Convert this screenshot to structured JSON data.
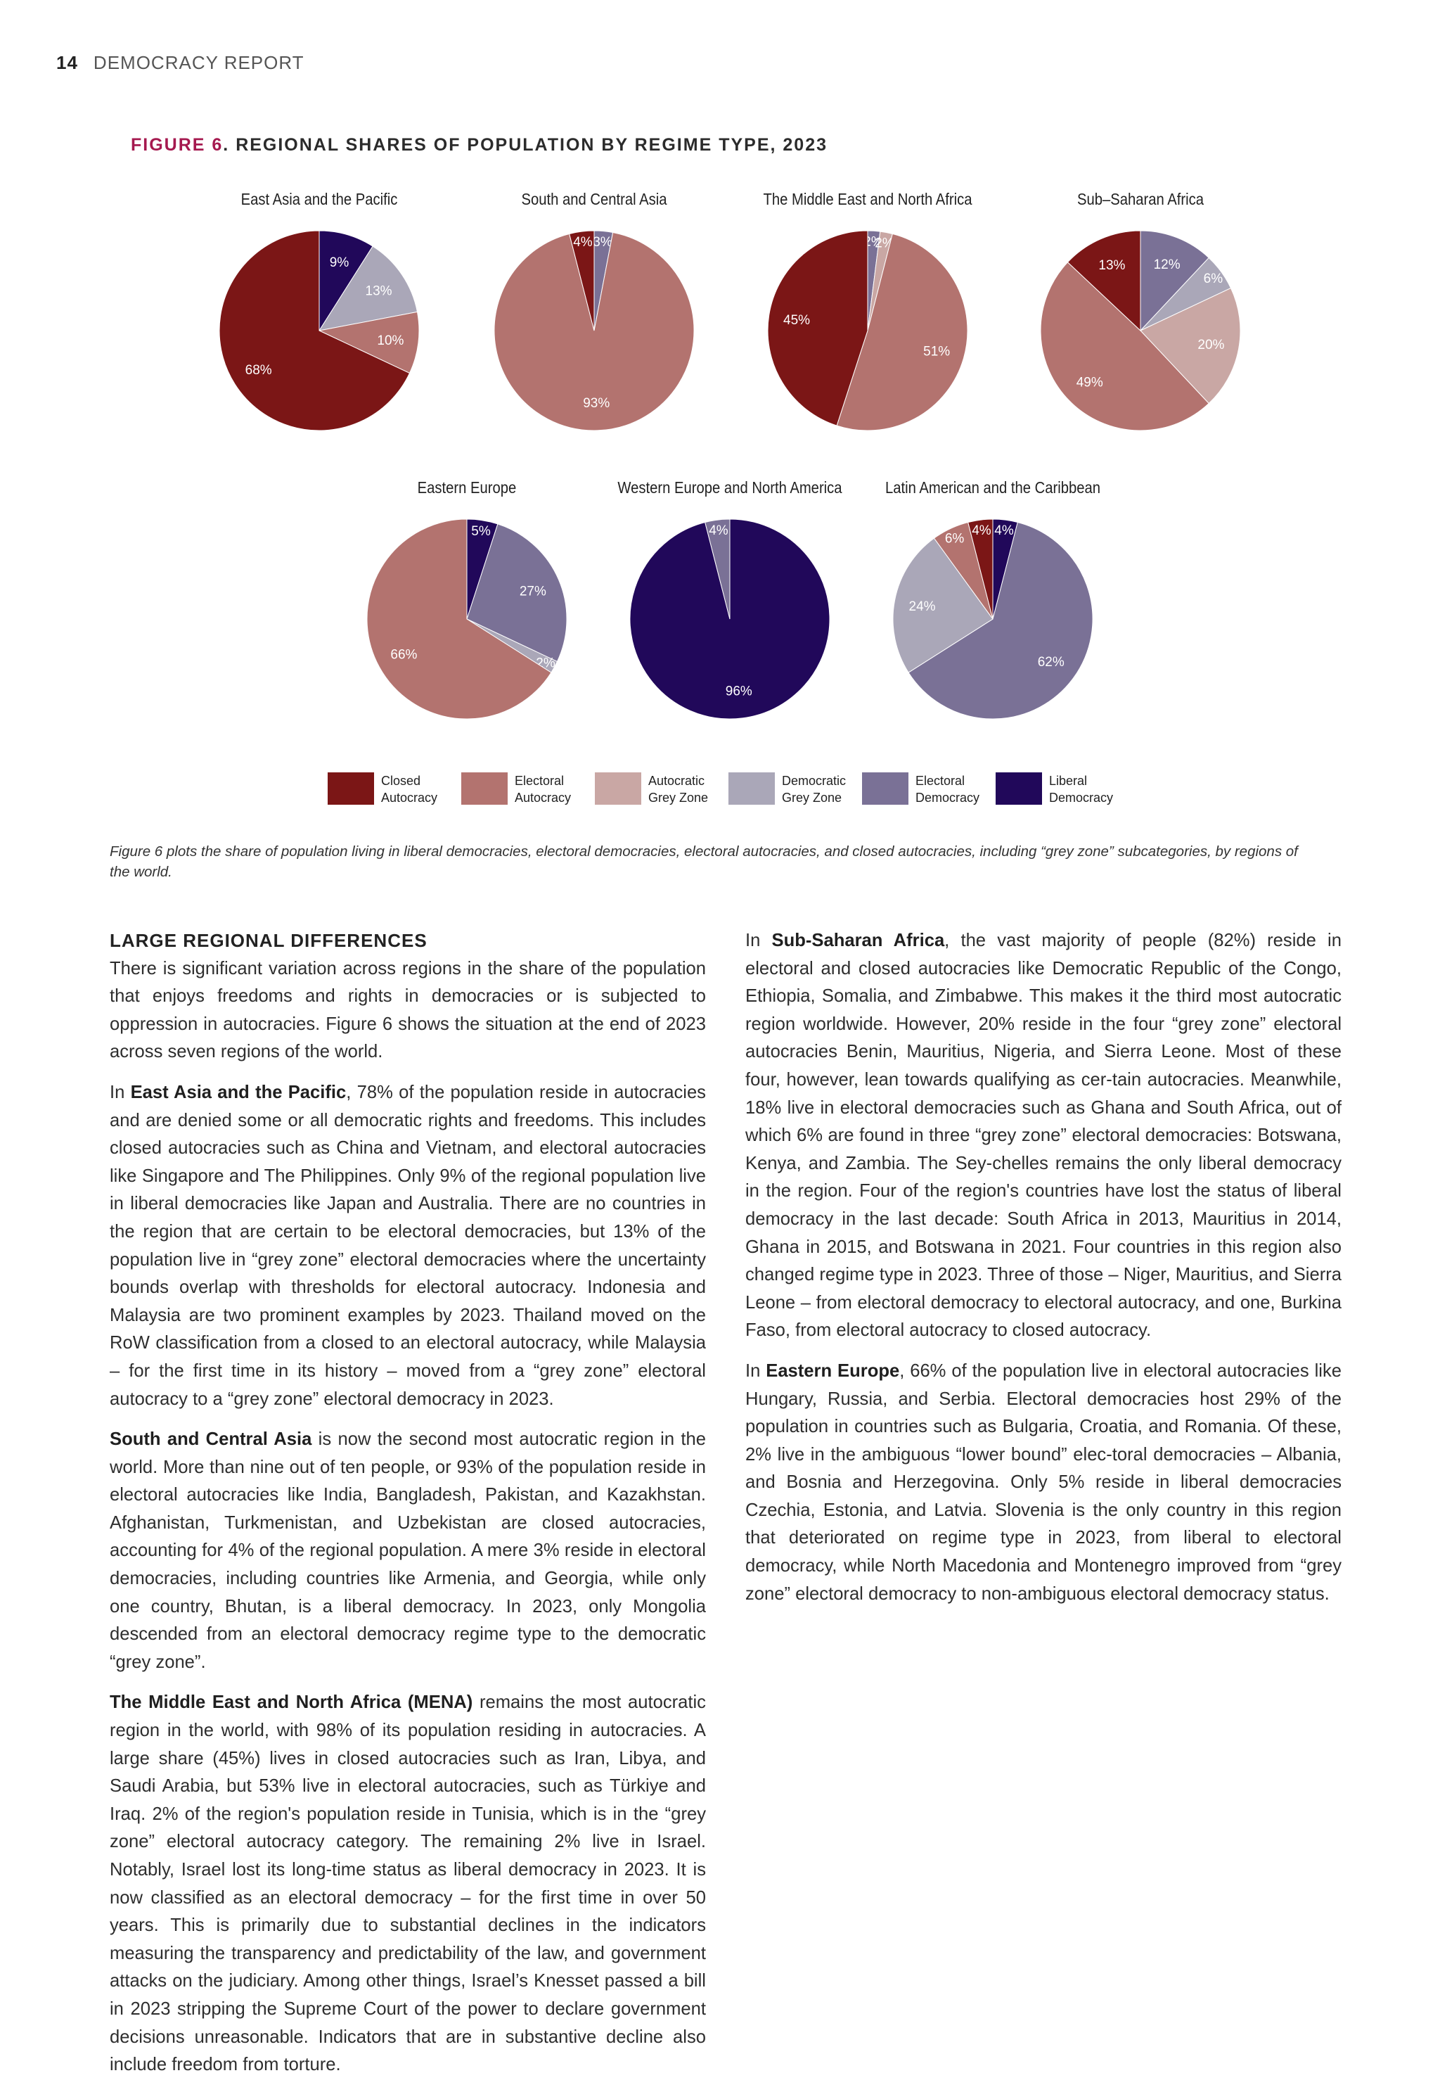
{
  "header": {
    "page_number": "14",
    "title": "DEMOCRACY REPORT"
  },
  "figure": {
    "number_label": "FIGURE 6",
    "title": ". REGIONAL SHARES OF POPULATION BY REGIME TYPE, 2023",
    "caption": "Figure 6 plots the share of population living in liberal democracies, electoral democracies, electoral autocracies, and closed autocracies, including “grey zone” subcategories, by regions of the world."
  },
  "colors": {
    "closed_autocracy": "#7b1616",
    "electoral_autocracy": "#b3736f",
    "autocratic_grey_zone": "#c9a7a4",
    "democratic_grey_zone": "#aaa7b8",
    "electoral_democracy": "#7a7196",
    "liberal_democracy": "#21085a"
  },
  "legend": [
    {
      "key": "closed_autocracy",
      "label": "Closed Autocracy"
    },
    {
      "key": "electoral_autocracy",
      "label": "Electoral Autocracy"
    },
    {
      "key": "autocratic_grey_zone",
      "label": "Autocratic Grey Zone"
    },
    {
      "key": "democratic_grey_zone",
      "label": "Democratic Grey Zone"
    },
    {
      "key": "electoral_democracy",
      "label": "Electoral Democracy"
    },
    {
      "key": "liberal_democracy",
      "label": "Liberal Democracy"
    }
  ],
  "chart_data": [
    {
      "type": "pie",
      "title": "East Asia and the Pacific",
      "slices": [
        {
          "category": "liberal_democracy",
          "value": 9,
          "label": "9%"
        },
        {
          "category": "democratic_grey_zone",
          "value": 13,
          "label": "13%"
        },
        {
          "category": "electoral_autocracy",
          "value": 10,
          "label": "10%"
        },
        {
          "category": "closed_autocracy",
          "value": 68,
          "label": "68%"
        }
      ]
    },
    {
      "type": "pie",
      "title": "South and Central Asia",
      "slices": [
        {
          "category": "electoral_democracy",
          "value": 3,
          "label": "3%"
        },
        {
          "category": "electoral_autocracy",
          "value": 93,
          "label": "93%"
        },
        {
          "category": "closed_autocracy",
          "value": 4,
          "label": "4%"
        }
      ]
    },
    {
      "type": "pie",
      "title": "The Middle East and North Africa",
      "slices": [
        {
          "category": "electoral_democracy",
          "value": 2,
          "label": "2%"
        },
        {
          "category": "autocratic_grey_zone",
          "value": 2,
          "label": "2%"
        },
        {
          "category": "electoral_autocracy",
          "value": 51,
          "label": "51%"
        },
        {
          "category": "closed_autocracy",
          "value": 45,
          "label": "45%"
        }
      ]
    },
    {
      "type": "pie",
      "title": "Sub–Saharan Africa",
      "slices": [
        {
          "category": "liberal_democracy",
          "value": 0,
          "label": "0%"
        },
        {
          "category": "electoral_democracy",
          "value": 12,
          "label": "12%"
        },
        {
          "category": "democratic_grey_zone",
          "value": 6,
          "label": "6%"
        },
        {
          "category": "autocratic_grey_zone",
          "value": 20,
          "label": "20%"
        },
        {
          "category": "electoral_autocracy",
          "value": 49,
          "label": "49%"
        },
        {
          "category": "closed_autocracy",
          "value": 13,
          "label": "13%"
        }
      ]
    },
    {
      "type": "pie",
      "title": "Eastern Europe",
      "slices": [
        {
          "category": "liberal_democracy",
          "value": 5,
          "label": "5%"
        },
        {
          "category": "electoral_democracy",
          "value": 27,
          "label": "27%"
        },
        {
          "category": "democratic_grey_zone",
          "value": 2,
          "label": "2%"
        },
        {
          "category": "electoral_autocracy",
          "value": 66,
          "label": "66%"
        }
      ]
    },
    {
      "type": "pie",
      "title": "Western Europe and North America",
      "slices": [
        {
          "category": "liberal_democracy",
          "value": 96,
          "label": "96%"
        },
        {
          "category": "electoral_democracy",
          "value": 4,
          "label": "4%"
        }
      ]
    },
    {
      "type": "pie",
      "title": "Latin American and the Caribbean",
      "slices": [
        {
          "category": "liberal_democracy",
          "value": 4,
          "label": "4%"
        },
        {
          "category": "electoral_democracy",
          "value": 62,
          "label": "62%"
        },
        {
          "category": "democratic_grey_zone",
          "value": 24,
          "label": "24%"
        },
        {
          "category": "electoral_autocracy",
          "value": 6,
          "label": "6%"
        },
        {
          "category": "closed_autocracy",
          "value": 4,
          "label": "4%"
        }
      ]
    }
  ],
  "text": {
    "section_heading": "LARGE REGIONAL DIFFERENCES",
    "intro": "There is significant variation across regions in the share of the population that enjoys freedoms and rights in democracies or is subjected to oppression in autocracies. Figure 6 shows the situation at the end of 2023 across seven regions of the world.",
    "eap_lead": "In ",
    "eap_name": "East Asia and the Pacific",
    "eap_body": ", 78% of the population reside in autocracies and are denied some or all democratic rights and freedoms. This includes closed autocracies such as China and Vietnam, and electoral autocracies like Singapore and The Philippines. Only 9% of the regional population live in liberal democracies like Japan and Australia. There are no countries in the region that are certain to be electoral democracies, but 13% of the population live in “grey zone” electoral democracies where the uncertainty bounds overlap with thresholds for electoral autocracy. Indonesia and Malaysia are two prominent examples by 2023. Thailand moved on the RoW classification from a closed to an electoral autocracy, while Malaysia – for the first time in its history – moved from a “grey zone” electoral autocracy to a “grey zone” electoral democracy in 2023.",
    "sca_name": "South and Central Asia",
    "sca_body": " is now the second most autocratic region in the world. More than nine out of ten people, or 93% of the population reside in electoral autocracies like India, Bangladesh, Pakistan, and Kazakhstan. Afghanistan, Turkmenistan, and Uzbekistan are closed autocracies, accounting for 4% of the regional population. A mere 3% reside in electoral democracies, including countries like Armenia, and Georgia, while only one country, Bhutan, is a liberal democracy. In 2023, only Mongolia descended from an electoral democracy regime type to the democratic “grey zone”.",
    "mena_name": "The Middle East and North Africa (MENA)",
    "mena_body": " remains the most autocratic region in the world, with 98% of its population residing in autocracies. A large share (45%) lives in closed autocracies such as Iran, Libya, and Saudi Arabia, but 53% live in electoral autocracies, such as Türkiye and Iraq. 2% of the region's population reside in Tunisia, which is in the “grey zone” electoral autocracy category. The remaining 2% live in Israel. Notably, Israel lost its long-time status as liberal democracy in 2023. It is now classified as an electoral democracy – for the first time in over 50 years. This is primarily due to substantial declines in the indicators measuring the transparency and predictability of the law, and government attacks on the judiciary. Among other things, Israel’s Knesset passed a bill in 2023 stripping the Supreme Court of the power to declare government decisions unreasonable. Indicators that are in substantive decline also include freedom from torture.",
    "ssa_lead": "In ",
    "ssa_name": "Sub-Saharan Africa",
    "ssa_body": ", the vast majority of people (82%) reside in electoral and closed autocracies like Democratic Republic of the Congo, Ethiopia, Somalia, and Zimbabwe. This makes it the third most autocratic region worldwide. However, 20% reside in the four “grey zone” electoral autocracies Benin, Mauritius, Nigeria, and Sierra Leone. Most of these four, however, lean towards qualifying as cer-tain autocracies. Meanwhile, 18% live in electoral democracies such as Ghana and South Africa, out of which 6% are found in three “grey zone” electoral democracies: Botswana, Kenya, and Zambia. The Sey-chelles remains the only liberal democracy in the region. Four of the region's countries have lost the status of liberal democracy in the last decade: South Africa in 2013, Mauritius in 2014, Ghana in 2015, and Botswana in 2021. Four countries in this region also changed regime type in 2023. Three of those – Niger, Mauritius, and Sierra Leone – from electoral democracy to electoral autocracy, and one, Burkina Faso, from electoral autocracy to closed autocracy.",
    "ee_lead": "In ",
    "ee_name": "Eastern Europe",
    "ee_body": ", 66% of the population live in electoral autocracies like Hungary, Russia, and Serbia. Electoral democracies host 29% of the population in countries such as Bulgaria, Croatia, and Romania. Of these, 2% live in the ambiguous “lower bound” elec-toral democracies – Albania, and Bosnia and Herzegovina. Only 5% reside in liberal democracies Czechia, Estonia, and Latvia. Slovenia is the only country in this region that deteriorated on regime type in 2023, from liberal to electoral democracy, while North Macedonia and Montenegro improved from “grey zone” electoral democracy to non-ambiguous electoral democracy status."
  }
}
